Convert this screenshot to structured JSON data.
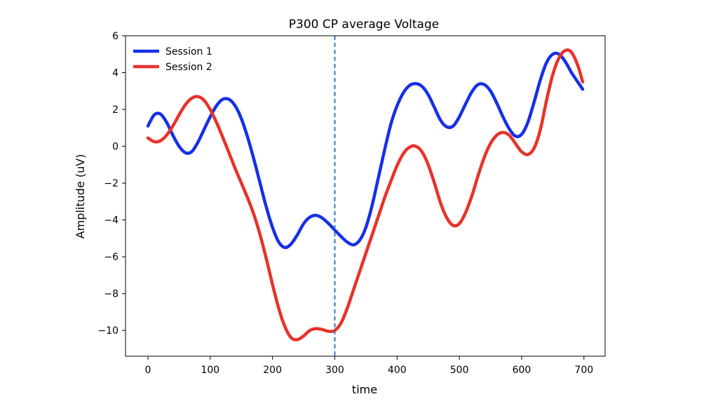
{
  "chart_data": {
    "type": "line",
    "title": "P300 CP average Voltage",
    "xlabel": "time",
    "ylabel": "Amplitude (uV)",
    "xlim": [
      -36,
      734
    ],
    "ylim": [
      -11.4,
      6
    ],
    "xticks": [
      0,
      100,
      200,
      300,
      400,
      500,
      600,
      700
    ],
    "yticks": [
      6,
      4,
      2,
      0,
      -2,
      -4,
      -6,
      -8,
      -10
    ],
    "ytick_labels": [
      "6",
      "4",
      "2",
      "0",
      "−2",
      "−4",
      "−6",
      "−8",
      "−10"
    ],
    "vline": {
      "x": 300,
      "color": "#3b78c0",
      "style": "dashed"
    },
    "legend_position": "upper-left",
    "grid": false,
    "series": [
      {
        "name": "Session 1",
        "color": "#1530e8",
        "points": [
          [
            0,
            1.1
          ],
          [
            10,
            1.7
          ],
          [
            20,
            1.75
          ],
          [
            30,
            1.3
          ],
          [
            40,
            0.6
          ],
          [
            50,
            0.0
          ],
          [
            60,
            -0.35
          ],
          [
            70,
            -0.3
          ],
          [
            80,
            0.2
          ],
          [
            90,
            0.9
          ],
          [
            100,
            1.6
          ],
          [
            110,
            2.2
          ],
          [
            120,
            2.55
          ],
          [
            130,
            2.55
          ],
          [
            140,
            2.2
          ],
          [
            150,
            1.5
          ],
          [
            160,
            0.5
          ],
          [
            170,
            -0.7
          ],
          [
            180,
            -2.0
          ],
          [
            190,
            -3.3
          ],
          [
            200,
            -4.4
          ],
          [
            210,
            -5.2
          ],
          [
            220,
            -5.5
          ],
          [
            230,
            -5.3
          ],
          [
            240,
            -4.8
          ],
          [
            250,
            -4.2
          ],
          [
            260,
            -3.85
          ],
          [
            270,
            -3.75
          ],
          [
            280,
            -3.9
          ],
          [
            290,
            -4.2
          ],
          [
            300,
            -4.55
          ],
          [
            310,
            -4.9
          ],
          [
            320,
            -5.2
          ],
          [
            330,
            -5.35
          ],
          [
            340,
            -5.1
          ],
          [
            350,
            -4.4
          ],
          [
            360,
            -3.2
          ],
          [
            370,
            -1.7
          ],
          [
            380,
            -0.2
          ],
          [
            390,
            1.2
          ],
          [
            400,
            2.2
          ],
          [
            410,
            2.9
          ],
          [
            420,
            3.3
          ],
          [
            430,
            3.4
          ],
          [
            440,
            3.25
          ],
          [
            450,
            2.8
          ],
          [
            460,
            2.1
          ],
          [
            470,
            1.4
          ],
          [
            480,
            1.05
          ],
          [
            490,
            1.1
          ],
          [
            500,
            1.6
          ],
          [
            510,
            2.3
          ],
          [
            520,
            2.95
          ],
          [
            530,
            3.35
          ],
          [
            540,
            3.35
          ],
          [
            550,
            3.0
          ],
          [
            560,
            2.35
          ],
          [
            570,
            1.6
          ],
          [
            580,
            0.95
          ],
          [
            590,
            0.55
          ],
          [
            600,
            0.65
          ],
          [
            610,
            1.3
          ],
          [
            620,
            2.4
          ],
          [
            630,
            3.6
          ],
          [
            640,
            4.55
          ],
          [
            650,
            5.0
          ],
          [
            660,
            5.0
          ],
          [
            670,
            4.6
          ],
          [
            680,
            4.0
          ],
          [
            690,
            3.5
          ],
          [
            698,
            3.1
          ]
        ]
      },
      {
        "name": "Session 2",
        "color": "#e8322a",
        "points": [
          [
            0,
            0.45
          ],
          [
            10,
            0.25
          ],
          [
            20,
            0.3
          ],
          [
            30,
            0.6
          ],
          [
            40,
            1.1
          ],
          [
            50,
            1.7
          ],
          [
            60,
            2.25
          ],
          [
            70,
            2.6
          ],
          [
            80,
            2.7
          ],
          [
            90,
            2.5
          ],
          [
            100,
            2.0
          ],
          [
            110,
            1.3
          ],
          [
            120,
            0.5
          ],
          [
            130,
            -0.35
          ],
          [
            140,
            -1.2
          ],
          [
            150,
            -2.0
          ],
          [
            160,
            -2.8
          ],
          [
            170,
            -3.7
          ],
          [
            180,
            -4.8
          ],
          [
            190,
            -6.1
          ],
          [
            200,
            -7.5
          ],
          [
            210,
            -8.8
          ],
          [
            220,
            -9.8
          ],
          [
            230,
            -10.4
          ],
          [
            240,
            -10.5
          ],
          [
            250,
            -10.3
          ],
          [
            260,
            -10.0
          ],
          [
            270,
            -9.9
          ],
          [
            280,
            -9.95
          ],
          [
            290,
            -10.05
          ],
          [
            300,
            -10.0
          ],
          [
            310,
            -9.6
          ],
          [
            320,
            -8.8
          ],
          [
            330,
            -7.8
          ],
          [
            340,
            -6.8
          ],
          [
            350,
            -5.8
          ],
          [
            360,
            -4.8
          ],
          [
            370,
            -3.8
          ],
          [
            380,
            -2.8
          ],
          [
            390,
            -1.9
          ],
          [
            400,
            -1.05
          ],
          [
            410,
            -0.4
          ],
          [
            420,
            -0.05
          ],
          [
            430,
            0.0
          ],
          [
            440,
            -0.3
          ],
          [
            450,
            -1.0
          ],
          [
            460,
            -2.0
          ],
          [
            470,
            -3.1
          ],
          [
            480,
            -3.9
          ],
          [
            490,
            -4.3
          ],
          [
            500,
            -4.2
          ],
          [
            510,
            -3.6
          ],
          [
            520,
            -2.7
          ],
          [
            530,
            -1.6
          ],
          [
            540,
            -0.6
          ],
          [
            550,
            0.15
          ],
          [
            560,
            0.6
          ],
          [
            570,
            0.75
          ],
          [
            580,
            0.6
          ],
          [
            590,
            0.15
          ],
          [
            600,
            -0.3
          ],
          [
            610,
            -0.45
          ],
          [
            620,
            -0.1
          ],
          [
            630,
            0.9
          ],
          [
            640,
            2.5
          ],
          [
            650,
            3.9
          ],
          [
            660,
            4.8
          ],
          [
            670,
            5.2
          ],
          [
            680,
            5.1
          ],
          [
            690,
            4.4
          ],
          [
            698,
            3.5
          ]
        ]
      }
    ]
  }
}
